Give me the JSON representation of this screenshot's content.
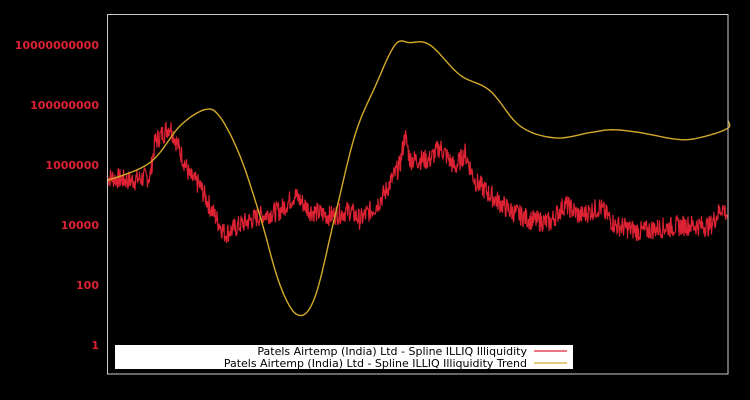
{
  "chart_data": {
    "type": "line",
    "title": "",
    "xlabel": "",
    "ylabel": "",
    "yscale": "log",
    "ylim": [
      0.3,
      10000000000000
    ],
    "y_ticks": [
      {
        "value": 1,
        "label": "1"
      },
      {
        "value": 100,
        "label": "100"
      },
      {
        "value": 10000,
        "label": "10000"
      },
      {
        "value": 1000000,
        "label": "1000000"
      },
      {
        "value": 100000000,
        "label": "100000000"
      },
      {
        "value": 10000000000,
        "label": "10000000000"
      }
    ],
    "x_ticks": [],
    "grid": false,
    "legend_position": "bottom-left inside",
    "x": [
      0,
      23,
      43,
      48,
      63,
      73,
      83,
      93,
      103,
      118,
      133,
      153,
      173,
      188,
      191,
      203,
      223,
      243,
      253,
      268,
      278,
      293,
      298,
      303,
      323,
      333,
      348,
      358,
      368,
      383,
      403,
      423,
      443,
      458,
      473,
      493,
      508,
      533,
      553,
      583,
      603,
      615,
      621
    ],
    "series": [
      {
        "name": "Patels Airtemp (India) Ltd - Spline ILLIQ Illiquidity",
        "color": "#dd2233",
        "values": [
          400000,
          300000,
          400000,
          6000000,
          20000000,
          3000000,
          400000,
          200000,
          40000,
          5000,
          10000,
          20000,
          30000,
          100000,
          null,
          30000,
          20000,
          30000,
          15000,
          40000,
          120000,
          1000000,
          10000000,
          1500000,
          1500000,
          4000000,
          800000,
          2500000,
          300000,
          100000,
          30000,
          15000,
          12000,
          50000,
          20000,
          40000,
          10000,
          6000,
          8000,
          10000,
          9000,
          40000,
          20000
        ]
      },
      {
        "name": "Patels Airtemp (India) Ltd - Spline ILLIQ Illiquidity Trend",
        "color": "#d4aa2a",
        "values": [
          300000,
          1200000,
          20000000,
          70000000,
          40000000,
          2000000,
          20000,
          100,
          10,
          40,
          20000,
          10000000,
          400000000,
          10000000000,
          12000000000,
          10000000000,
          1000000000,
          300000000,
          20000000,
          8000000,
          12000000,
          15000000,
          12000000,
          7000000,
          9000000,
          17000000,
          30000000
        ]
      }
    ],
    "trend_x": [
      0,
      43,
      73,
      98,
      113,
      133,
      153,
      173,
      191,
      208,
      228,
      248,
      268,
      288,
      303,
      323,
      353,
      383,
      413,
      448,
      483,
      505,
      533,
      573,
      598,
      621,
      621
    ]
  },
  "legend": {
    "items": [
      {
        "label": "Patels Airtemp (India) Ltd - Spline ILLIQ Illiquidity",
        "color": "#dd2233"
      },
      {
        "label": "Patels Airtemp (India) Ltd - Spline ILLIQ Illiquidity Trend",
        "color": "#d4aa2a"
      }
    ]
  },
  "colors": {
    "background": "#000000",
    "frame": "#cccccc",
    "tick_label": "#dd2233",
    "legend_bg": "#ffffff"
  }
}
